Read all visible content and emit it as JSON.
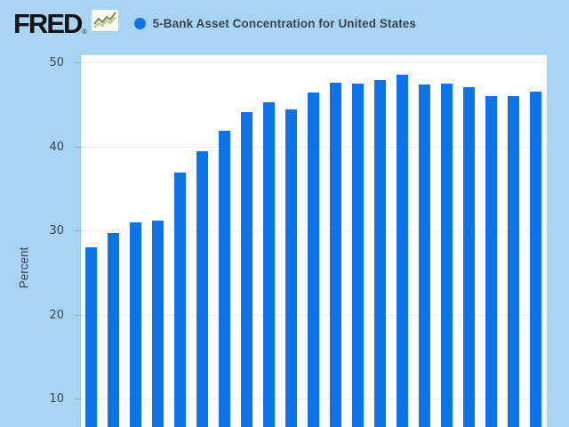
{
  "header": {
    "logo_text": "FRED",
    "registered_mark": "®",
    "legend_label": "5-Bank Asset Concentration for United States"
  },
  "chart_data": {
    "type": "bar",
    "title": "5-Bank Asset Concentration for United States",
    "ylabel": "Percent",
    "xlabel": "",
    "y_ticks": [
      50,
      40,
      30,
      20,
      10
    ],
    "ylim": [
      0,
      50
    ],
    "x_tick_labels_visible": false,
    "grid": true,
    "legend_position": "top",
    "bar_count": 21,
    "values": [
      28.04,
      29.66,
      30.97,
      31.12,
      36.93,
      39.43,
      41.83,
      44.12,
      45.26,
      44.42,
      46.39,
      47.55,
      47.47,
      47.9,
      48.54,
      47.36,
      47.46,
      47.08,
      45.97,
      45.99,
      46.47
    ]
  },
  "colors": {
    "page_background": "#a9d3f3",
    "plot_background": "#ffffff",
    "bar": "#0d73e8",
    "legend_dot": "#0d73e8",
    "gridline": "#e9ebed",
    "axis_text": "#3c4550",
    "legend_text": "#36454e",
    "logo_text": "#121415",
    "logo_icon_background": "#fafaf0",
    "logo_icon_line_dark": "#72904a",
    "logo_icon_line_light": "#b3c48e"
  }
}
